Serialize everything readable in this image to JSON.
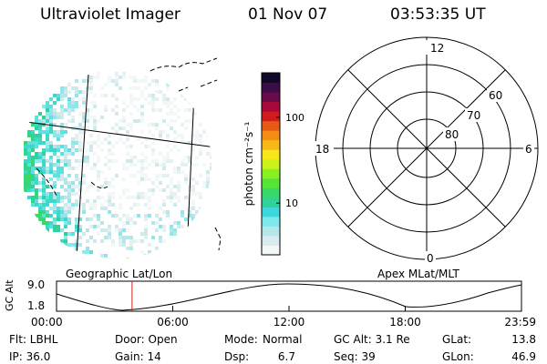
{
  "header": {
    "title": "Ultraviolet Imager",
    "date": "01 Nov 07",
    "time": "03:53:35 UT"
  },
  "colorbar": {
    "label": "photon cm⁻²s⁻¹",
    "ticks": [
      {
        "value": 100,
        "label": "100"
      },
      {
        "value": 10,
        "label": "10"
      }
    ],
    "range": [
      2.5,
      330
    ],
    "scale": "log",
    "colors": [
      "#f2f8f8",
      "#d8ecee",
      "#b4e6ea",
      "#7ee8ea",
      "#3cd8dc",
      "#30d29a",
      "#38d86a",
      "#56e436",
      "#8cf020",
      "#ccf21c",
      "#f6e81a",
      "#f8b818",
      "#f48c16",
      "#e65a14",
      "#d21c1c",
      "#a8083a",
      "#6a0a4a",
      "#3a0c48",
      "#100828"
    ]
  },
  "polar_plot": {
    "labels": {
      "top": "12",
      "left": "18",
      "right": "6",
      "bottom": "0"
    },
    "latitude_labels": [
      "60",
      "70",
      "80"
    ]
  },
  "timeline": {
    "ylabel": "GC Alt",
    "yticks": [
      "9.0",
      "1.8"
    ],
    "left_label": "Geographic Lat/Lon",
    "right_label": "Apex MLat/MLT",
    "xticks": [
      "00:00",
      "06:00",
      "12:00",
      "18:00",
      "23:59"
    ],
    "current_time_hours": 3.9
  },
  "info": {
    "filter": "Flt: LBHL",
    "door": "Door: Open",
    "mode_label": "Mode:",
    "mode_value": "Normal",
    "gc_alt": "GC Alt: 3.1 Re",
    "glat_label": "GLat:",
    "glat_value": "13.8",
    "ip": "IP: 36.0",
    "gain": "Gain: 14",
    "dsp_label": "Dsp:",
    "dsp_value": "6.7",
    "seq": "Seq: 39",
    "glon_label": "GLon:",
    "glon_value": "46.9"
  }
}
